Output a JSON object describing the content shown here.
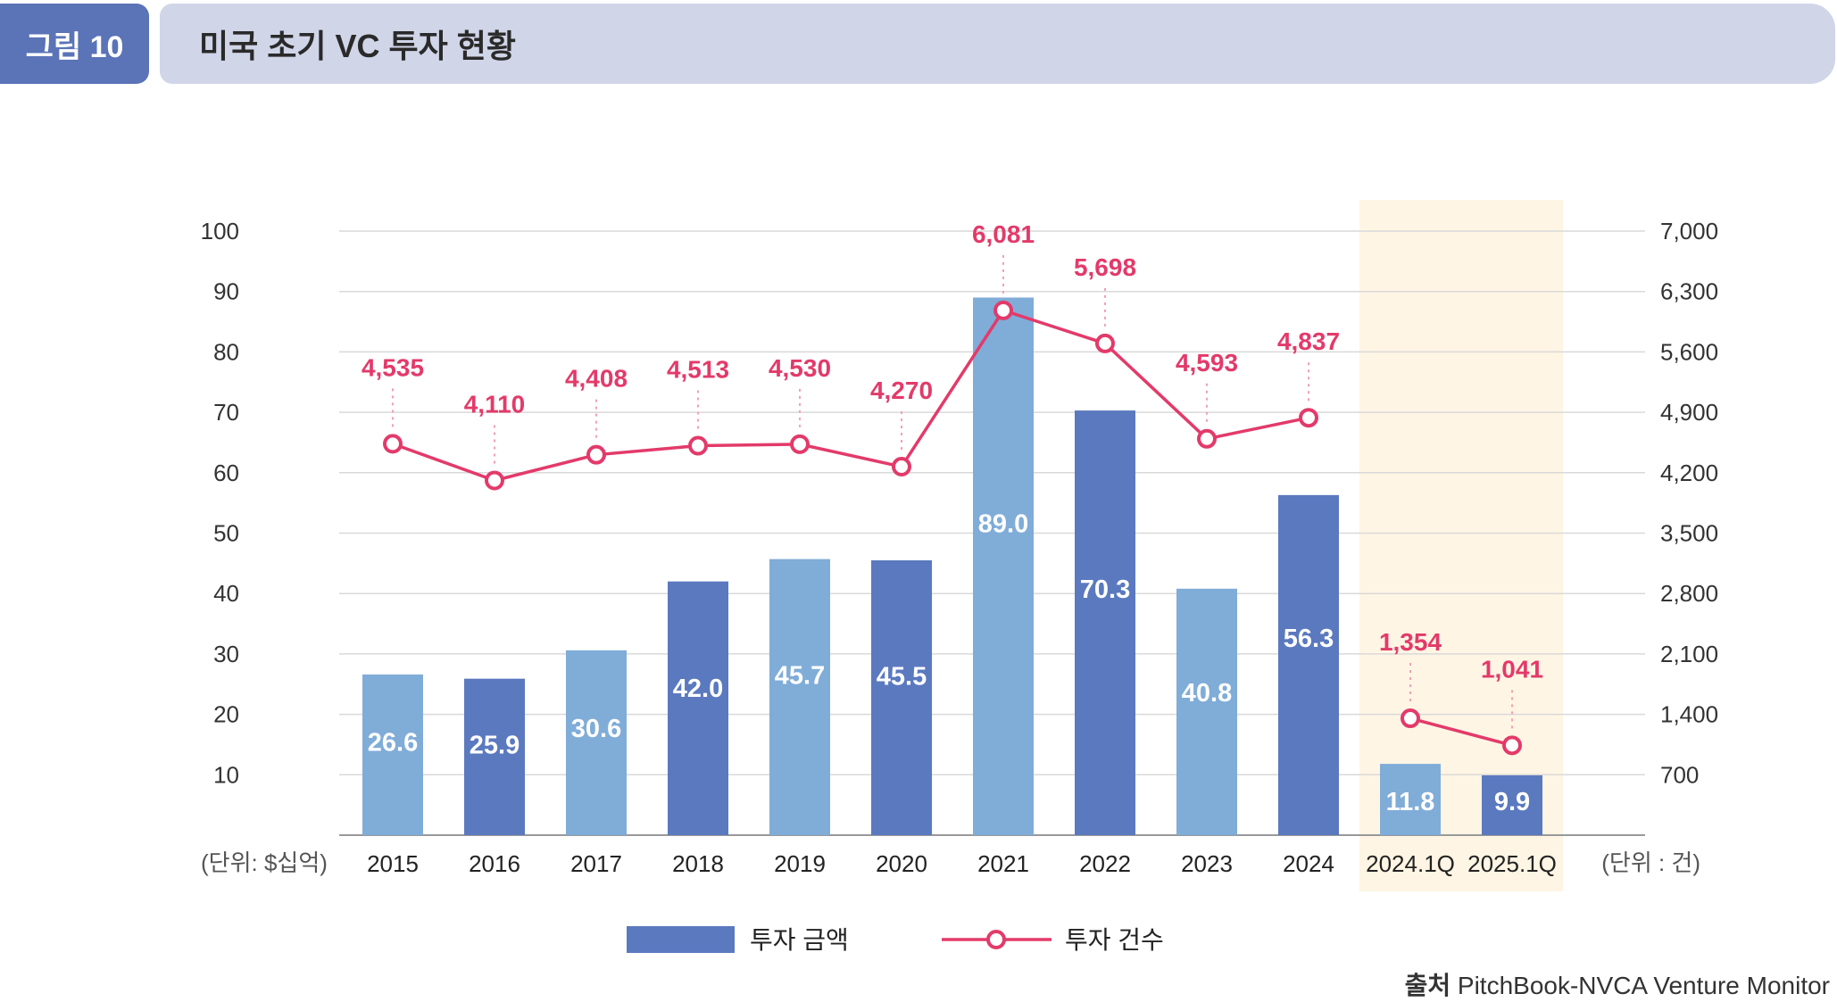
{
  "header": {
    "figure_label": "그림 10",
    "title": "미국 초기 VC 투자 현황"
  },
  "source": {
    "label": "출처",
    "text": "PitchBook-NVCA Venture Monitor"
  },
  "colors": {
    "bar_dark": "#5b79bf",
    "bar_light": "#80acd8",
    "line": "#e33a6a",
    "highlight": "#fff5e4",
    "grid": "#d9d9d9",
    "axis_text": "#333333"
  },
  "chart_data": {
    "type": "bar",
    "categories": [
      "2015",
      "2016",
      "2017",
      "2018",
      "2019",
      "2020",
      "2021",
      "2022",
      "2023",
      "2024",
      "2024.1Q",
      "2025.1Q"
    ],
    "series": [
      {
        "name": "투자 금액",
        "type": "bar",
        "axis": "left",
        "values": [
          26.6,
          25.9,
          30.6,
          42.0,
          45.7,
          45.5,
          89.0,
          70.3,
          40.8,
          56.3,
          11.8,
          9.9
        ],
        "labels": [
          "26.6",
          "25.9",
          "30.6",
          "42.0",
          "45.7",
          "45.5",
          "89.0",
          "70.3",
          "40.8",
          "56.3",
          "11.8",
          "9.9"
        ],
        "shade": [
          "light",
          "dark",
          "light",
          "dark",
          "light",
          "dark",
          "light",
          "dark",
          "light",
          "dark",
          "light",
          "dark"
        ]
      },
      {
        "name": "투자 건수",
        "type": "line",
        "axis": "right",
        "values": [
          4535,
          4110,
          4408,
          4513,
          4530,
          4270,
          6081,
          5698,
          4593,
          4837,
          1354,
          1041
        ],
        "labels": [
          "4,535",
          "4,110",
          "4,408",
          "4,513",
          "4,530",
          "4,270",
          "6,081",
          "5,698",
          "4,593",
          "4,837",
          "1,354",
          "1,041"
        ],
        "segments": [
          [
            0,
            9
          ],
          [
            10,
            11
          ]
        ]
      }
    ],
    "left_axis": {
      "unit_label": "(단위: $십억)",
      "ticks": [
        "10",
        "20",
        "30",
        "40",
        "50",
        "60",
        "70",
        "80",
        "90",
        "100"
      ],
      "ylim": [
        0,
        100
      ]
    },
    "right_axis": {
      "unit_label": "(단위 : 건)",
      "ticks": [
        "700",
        "1,400",
        "2,100",
        "2,800",
        "3,500",
        "4,200",
        "4,900",
        "5,600",
        "6,300",
        "7,000"
      ],
      "ylim": [
        0,
        7000
      ]
    },
    "highlight_categories": [
      "2024.1Q",
      "2025.1Q"
    ],
    "grid": true,
    "legend": {
      "position": "bottom-center",
      "items": [
        {
          "label": "투자 금액",
          "kind": "bar"
        },
        {
          "label": "투자 건수",
          "kind": "line"
        }
      ]
    }
  }
}
